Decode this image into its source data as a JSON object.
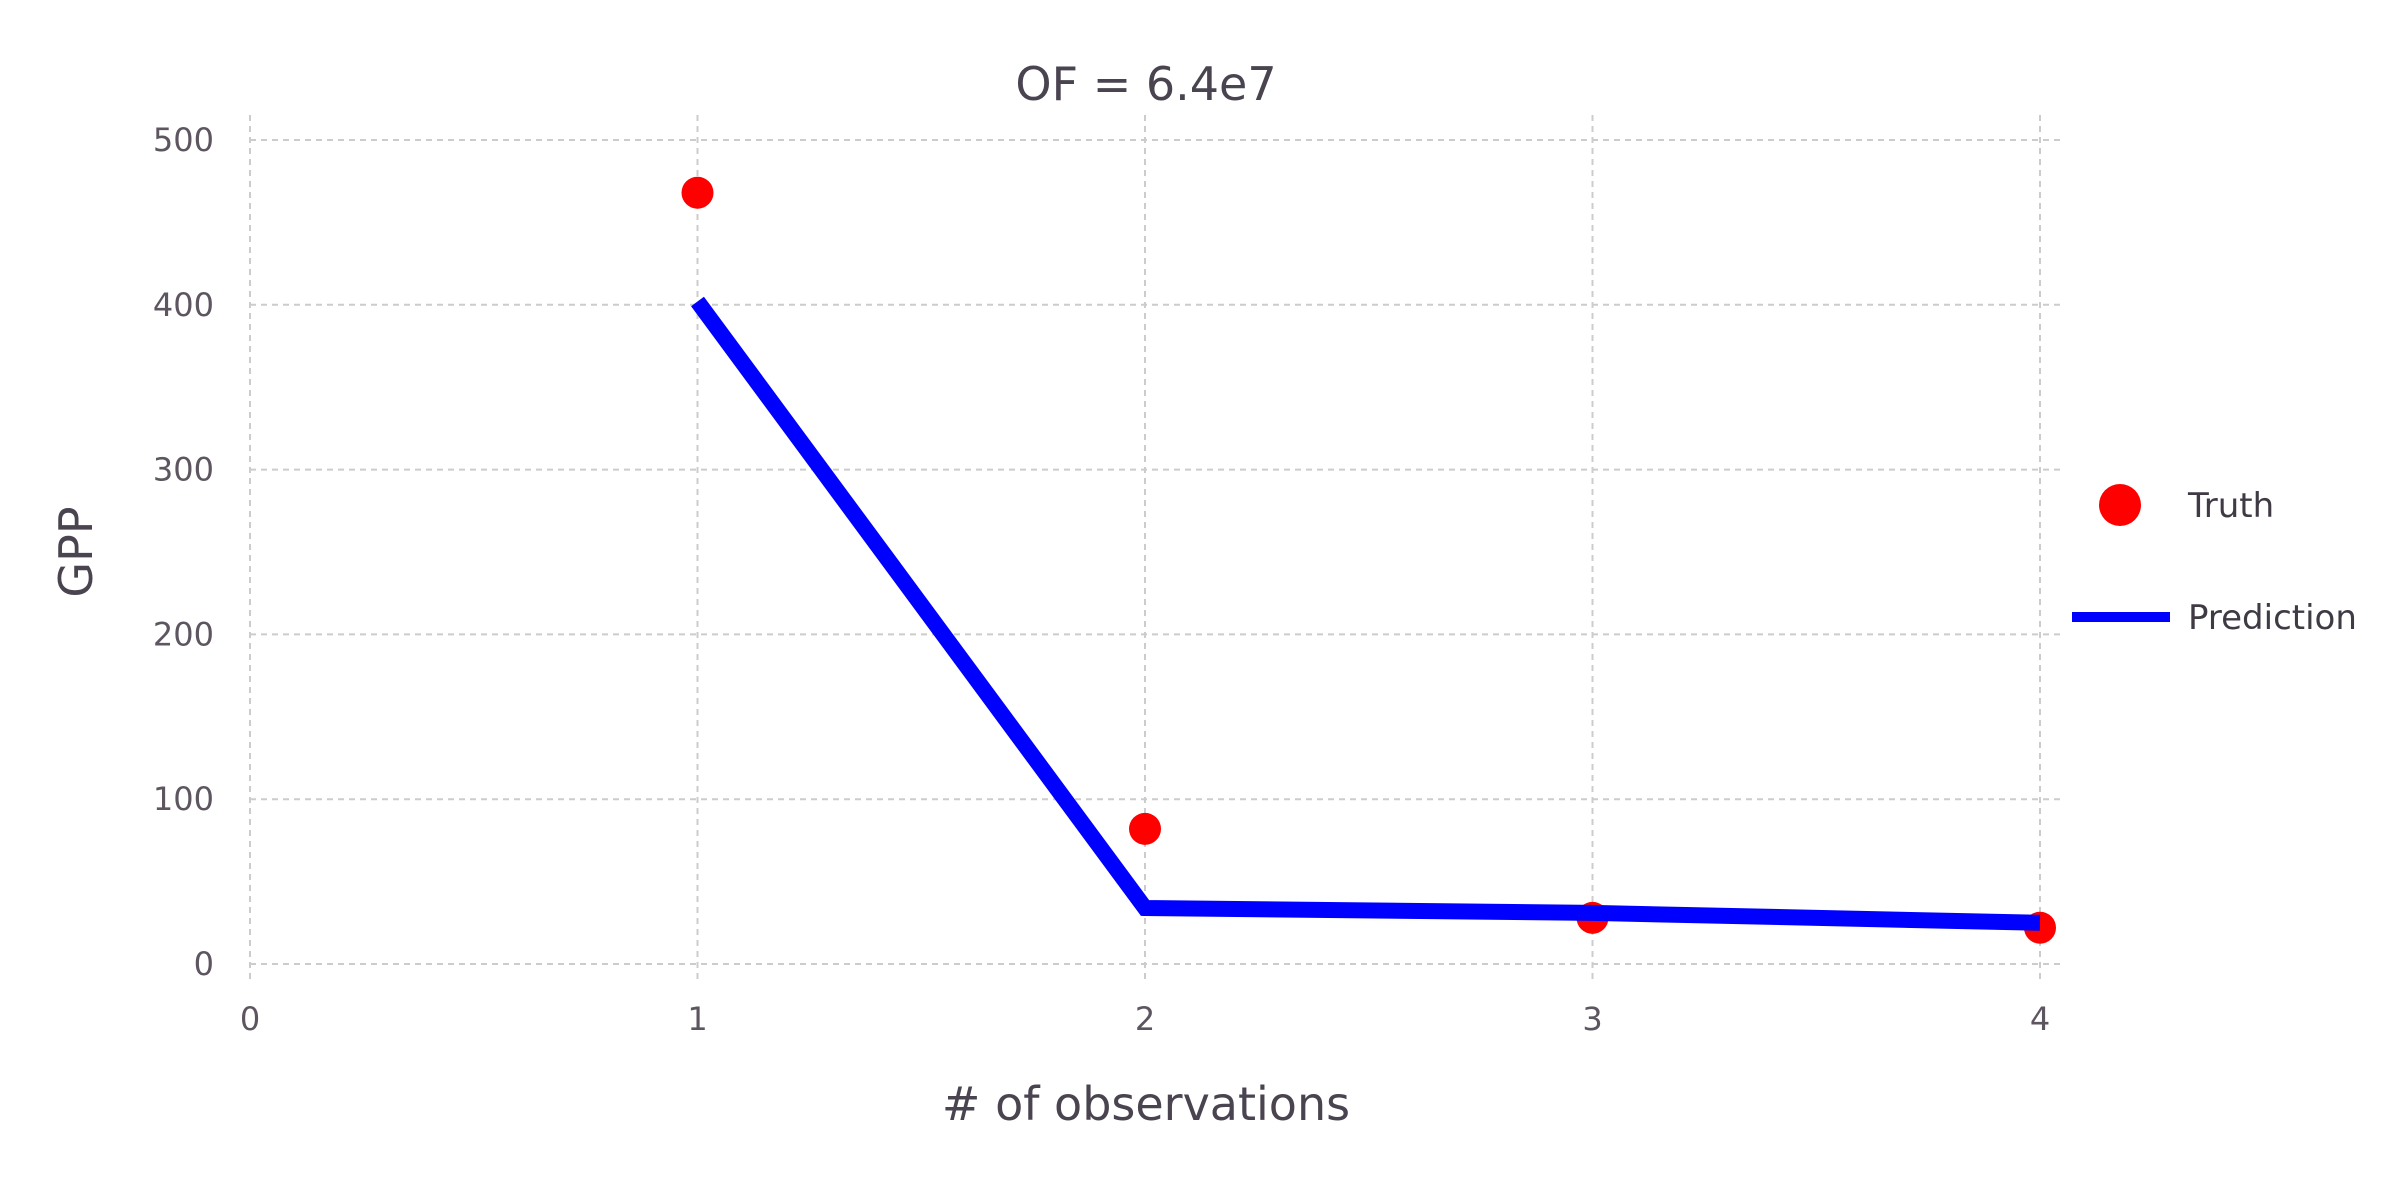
{
  "chart_data": {
    "type": "line",
    "title": "OF = 6.4e7",
    "xlabel": "# of observations",
    "ylabel": "GPP",
    "xlim": [
      0,
      4
    ],
    "ylim": [
      0,
      500
    ],
    "xticks": [
      0,
      1,
      2,
      3,
      4
    ],
    "yticks": [
      0,
      100,
      200,
      300,
      400,
      500
    ],
    "grid": true,
    "legend_position": "right",
    "series": [
      {
        "name": "Truth",
        "kind": "scatter",
        "color": "#ff0000",
        "x": [
          1,
          2,
          3,
          4
        ],
        "y": [
          468,
          82,
          28,
          22
        ]
      },
      {
        "name": "Prediction",
        "kind": "line",
        "color": "#0000ff",
        "x": [
          1,
          2,
          3,
          4
        ],
        "y": [
          402,
          34,
          31,
          25
        ]
      }
    ]
  }
}
